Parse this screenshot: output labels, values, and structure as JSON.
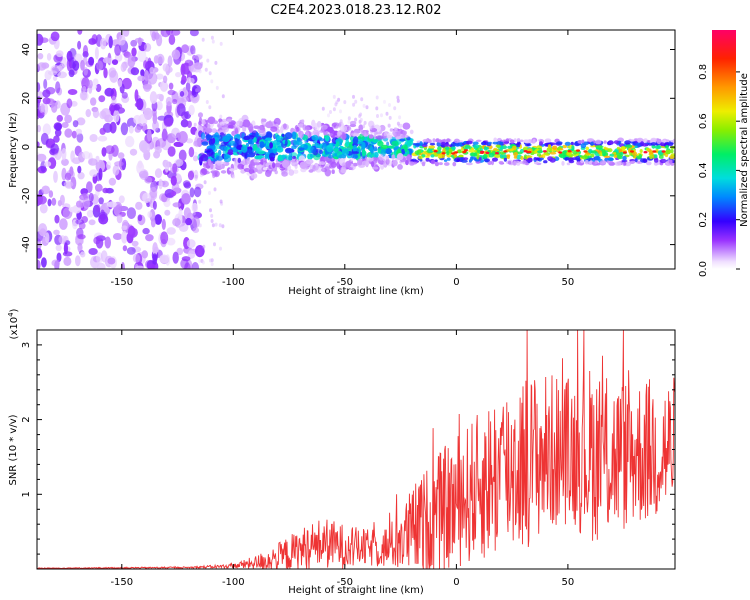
{
  "title": "C2E4.2023.018.23.12.R02",
  "chart_data": [
    {
      "type": "heatmap",
      "name": "spectrogram",
      "xlabel": "Height of straight line (km)",
      "ylabel": "Frequency (Hz)",
      "xlim": [
        -188,
        98
      ],
      "ylim": [
        -50,
        48
      ],
      "x_ticks": [
        -150,
        -100,
        -50,
        0,
        50
      ],
      "y_ticks": [
        -40,
        -20,
        0,
        20,
        40
      ],
      "colorbar": {
        "label": "Normalized spectral amplitude",
        "range": [
          0,
          0.97
        ],
        "ticks": [
          0.0,
          0.2,
          0.4,
          0.6,
          0.8
        ],
        "tick_labels": [
          "0.0",
          "0.2",
          "0.4",
          "0.6",
          "0.8"
        ]
      },
      "regions": [
        {
          "name": "noise",
          "x_range": [
            -188,
            -115
          ],
          "freq_range": [
            -50,
            48
          ],
          "amplitude": [
            0.02,
            0.15
          ]
        },
        {
          "name": "transition",
          "x_range": [
            -115,
            -20
          ],
          "freq_center": 0,
          "freq_halfwidth": 10,
          "amplitude": [
            0.1,
            0.45
          ]
        },
        {
          "name": "stable_band",
          "x_range": [
            -20,
            98
          ],
          "freq_center": -2,
          "freq_halfwidth": 4,
          "amplitude": [
            0.4,
            0.97
          ]
        }
      ]
    },
    {
      "type": "line",
      "name": "snr",
      "xlabel": "Height of straight line (km)",
      "ylabel": "SNR (10 * v/v)",
      "y_scale_label": "(x10",
      "y_scale_exponent": "4",
      "y_scale_close": ")",
      "xlim": [
        -188,
        98
      ],
      "ylim": [
        0,
        3.2
      ],
      "x_ticks": [
        -150,
        -100,
        -50,
        0,
        50
      ],
      "y_ticks": [
        1,
        2,
        3
      ],
      "color": "#ee3333",
      "envelope": {
        "x": [
          -188,
          -120,
          -100,
          -90,
          -80,
          -70,
          -60,
          -50,
          -40,
          -30,
          -20,
          -10,
          0,
          10,
          20,
          30,
          40,
          50,
          60,
          70,
          80,
          90,
          98
        ],
        "base": [
          0.01,
          0.02,
          0.04,
          0.08,
          0.15,
          0.25,
          0.35,
          0.3,
          0.28,
          0.3,
          0.5,
          0.7,
          0.9,
          1.1,
          1.3,
          1.45,
          1.55,
          1.6,
          1.55,
          1.5,
          1.55,
          1.6,
          1.6
        ],
        "spread": [
          0.005,
          0.01,
          0.03,
          0.1,
          0.2,
          0.3,
          0.35,
          0.3,
          0.25,
          0.3,
          0.6,
          0.8,
          0.9,
          1.0,
          1.2,
          1.2,
          1.1,
          1.0,
          1.2,
          1.1,
          1.0,
          1.0,
          1.0
        ]
      }
    }
  ]
}
